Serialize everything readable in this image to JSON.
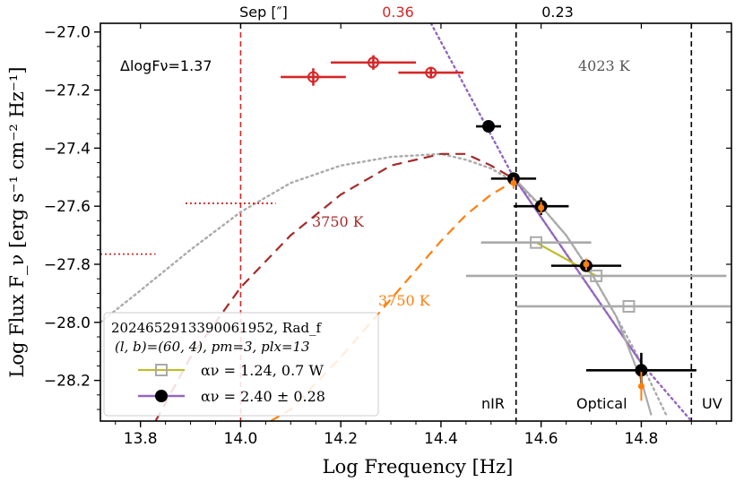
{
  "chart_data": {
    "type": "scatter",
    "xlabel": "Log Frequency [Hz]",
    "ylabel": "Log Flux F_ν [erg s⁻¹ cm⁻² Hz⁻¹]",
    "xlim": [
      13.72,
      14.98
    ],
    "ylim": [
      -28.34,
      -26.97
    ],
    "x_ticks": [
      13.8,
      14.0,
      14.2,
      14.4,
      14.6,
      14.8
    ],
    "x_tick_labels": [
      "13.8",
      "14.0",
      "14.2",
      "14.4",
      "14.6",
      "14.8"
    ],
    "y_ticks": [
      -27.0,
      -27.2,
      -27.4,
      -27.6,
      -27.8,
      -28.0,
      -28.2
    ],
    "y_tick_labels": [
      "−27.0",
      "−27.2",
      "−27.4",
      "−27.6",
      "−27.8",
      "−28.0",
      "−28.2"
    ],
    "top_axis": {
      "labels": [
        {
          "text": "Sep [″]",
          "x": 14.0,
          "color": "#000000"
        },
        {
          "text": "0.36",
          "x": 14.27,
          "color": "#d62728"
        },
        {
          "text": "0.23",
          "x": 14.55,
          "color": "#000000"
        }
      ]
    },
    "annotations": {
      "delta": "ΔlogFν=1.37",
      "temp_top": "4023 K",
      "temp_red": "3750 K",
      "temp_orange": "3750 K",
      "band_nir": "nIR",
      "band_optical": "Optical",
      "band_uv": "UV"
    },
    "vlines": [
      {
        "x": 14.0,
        "color": "#d62728",
        "style": "dashed"
      },
      {
        "x": 14.55,
        "color": "#000000",
        "style": "dashed"
      },
      {
        "x": 14.9,
        "color": "#000000",
        "style": "dashed"
      }
    ],
    "series": [
      {
        "name": "red open circles",
        "marker": "open-circle",
        "color": "#d62728",
        "points": [
          {
            "x": 14.145,
            "y": -27.155,
            "xerr": 0.065,
            "yerr": 0.03
          },
          {
            "x": 14.265,
            "y": -27.105,
            "xerr": 0.085,
            "yerr": 0.025
          },
          {
            "x": 14.38,
            "y": -27.14,
            "xerr": 0.065,
            "yerr": 0.02
          }
        ]
      },
      {
        "name": "black filled circles",
        "marker": "filled-circle",
        "color": "#000000",
        "points": [
          {
            "x": 14.495,
            "y": -27.325,
            "xerr": 0.025,
            "yerr": 0.01
          },
          {
            "x": 14.545,
            "y": -27.505,
            "xerr": 0.045,
            "yerr": 0.02
          },
          {
            "x": 14.6,
            "y": -27.6,
            "xerr": 0.055,
            "yerr": 0.03
          },
          {
            "x": 14.69,
            "y": -27.805,
            "xerr": 0.07,
            "yerr": 0.02
          },
          {
            "x": 14.8,
            "y": -28.165,
            "xerr": 0.11,
            "yerr": 0.06
          }
        ]
      },
      {
        "name": "grey open squares",
        "marker": "open-square",
        "color": "#aaaaaa",
        "points": [
          {
            "x": 14.59,
            "y": -27.725,
            "xerr": 0.11
          },
          {
            "x": 14.71,
            "y": -27.84,
            "xerr": 0.26
          },
          {
            "x": 14.775,
            "y": -27.945,
            "xerr": 0.225
          }
        ]
      },
      {
        "name": "orange points",
        "marker": "small-circle",
        "color": "#ff7f0e",
        "points": [
          {
            "x": 14.545,
            "y": -27.52,
            "yerr": 0.02
          },
          {
            "x": 14.6,
            "y": -27.605,
            "yerr": 0.02
          },
          {
            "x": 14.69,
            "y": -27.8,
            "yerr": 0.02
          },
          {
            "x": 14.8,
            "y": -28.22,
            "yerr": 0.05
          }
        ]
      },
      {
        "name": "grey dotted blackbody",
        "style": "dotted",
        "color": "#aaaaaa",
        "x": [
          13.72,
          13.8,
          13.9,
          14.0,
          14.1,
          14.2,
          14.3,
          14.4,
          14.45,
          14.5,
          14.55,
          14.6,
          14.65,
          14.7,
          14.75,
          14.8,
          14.85
        ],
        "y": [
          -28.0,
          -27.89,
          -27.75,
          -27.62,
          -27.52,
          -27.46,
          -27.43,
          -27.42,
          -27.44,
          -27.47,
          -27.52,
          -27.6,
          -27.7,
          -27.83,
          -27.98,
          -28.14,
          -28.32
        ]
      },
      {
        "name": "dark red dashed 3750 K",
        "style": "dashed",
        "color": "#a52a2a",
        "x": [
          13.83,
          13.9,
          14.0,
          14.1,
          14.2,
          14.3,
          14.4,
          14.45,
          14.5,
          14.54
        ],
        "y": [
          -28.34,
          -28.12,
          -27.88,
          -27.7,
          -27.56,
          -27.46,
          -27.42,
          -27.42,
          -27.46,
          -27.5
        ]
      },
      {
        "name": "orange dashed 3750 K",
        "style": "dashed",
        "color": "#ff7f0e",
        "x": [
          14.06,
          14.1,
          14.2,
          14.3,
          14.4,
          14.45,
          14.5,
          14.54
        ],
        "y": [
          -28.34,
          -28.3,
          -28.12,
          -27.92,
          -27.72,
          -27.63,
          -27.56,
          -27.52
        ]
      },
      {
        "name": "purple power law",
        "style": "solid",
        "color": "#9467bd",
        "x": [
          14.545,
          14.8
        ],
        "y": [
          -27.5,
          -28.14
        ]
      },
      {
        "name": "purple dotted extension",
        "style": "dotted",
        "color": "#9467bd",
        "x": [
          14.38,
          14.545,
          14.8,
          14.9
        ],
        "y": [
          -26.97,
          -27.5,
          -28.14,
          -28.34
        ]
      },
      {
        "name": "grey solid model",
        "style": "solid",
        "color": "#aaaaaa",
        "x": [
          14.55,
          14.6,
          14.65,
          14.7,
          14.75,
          14.8,
          14.82
        ],
        "y": [
          -27.51,
          -27.6,
          -27.7,
          -27.83,
          -27.98,
          -28.2,
          -28.32
        ]
      },
      {
        "name": "olive fit line",
        "style": "solid",
        "color": "#bcbd22",
        "x": [
          14.59,
          14.71
        ],
        "y": [
          -27.725,
          -27.84
        ]
      },
      {
        "name": "red dotted upper limits",
        "style": "dotted",
        "color": "#d62728",
        "segments": [
          {
            "x": [
              13.89,
              14.07
            ],
            "y": [
              -27.59,
              -27.59
            ]
          },
          {
            "x": [
              13.72,
              13.83
            ],
            "y": [
              -27.765,
              -27.765
            ]
          }
        ]
      }
    ],
    "legend": {
      "position": "lower-left",
      "title_line1": "2024652913390061952, Rad_f",
      "title_line2": "(l, b)=(60, 4), pm=3, plx=13",
      "entries": [
        {
          "label": "αν = 1.24, 0.7 W",
          "line_color": "#bcbd22",
          "marker": "open-square",
          "marker_color": "#aaaaaa"
        },
        {
          "label": "αν =  2.40 ± 0.28",
          "line_color": "#9467bd",
          "marker": "filled-circle",
          "marker_color": "#000000"
        }
      ]
    }
  }
}
